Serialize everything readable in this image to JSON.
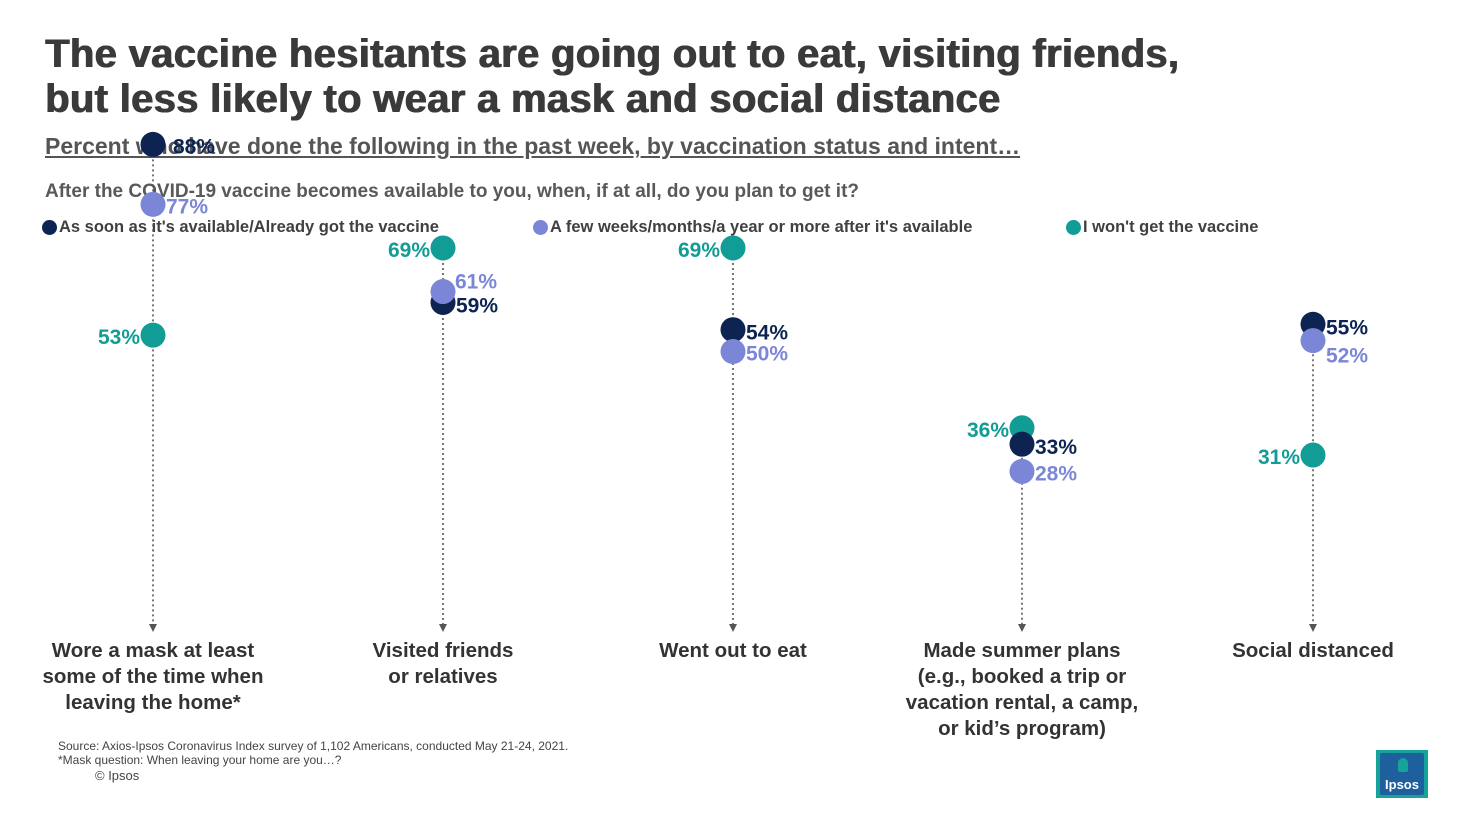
{
  "title_line1": "The vaccine hesitants are going out to eat, visiting friends,",
  "title_line2": "but less likely to wear a mask and social distance",
  "subtitle": "Percent who have done the following in the past week, by vaccination status and intent…",
  "question": "After the COVID-19 vaccine becomes available to you, when, if at all, do you plan to get it?",
  "footnote_source": "Source: Axios-Ipsos Coronavirus Index survey of 1,102 Americans, conducted May 21-24, 2021.",
  "footnote_mask": "*Mask question: When leaving your home are you…?",
  "copyright": "© Ipsos",
  "logo_text": "Ipsos",
  "colors": {
    "soon": "#0d2453",
    "later": "#7b86d6",
    "wont": "#119c95"
  },
  "chart_data": {
    "type": "dot",
    "series": [
      {
        "name": "As soon as it's available/Already got the vaccine",
        "key": "soon",
        "values": [
          88,
          59,
          54,
          33,
          55
        ]
      },
      {
        "name": "A few weeks/months/a year or more after it's available",
        "key": "later",
        "values": [
          77,
          61,
          50,
          28,
          52
        ]
      },
      {
        "name": "I won't get the vaccine",
        "key": "wont",
        "values": [
          53,
          69,
          69,
          36,
          31
        ]
      }
    ],
    "categories": [
      [
        "Wore a mask at least",
        "some of the time when",
        "leaving the home*"
      ],
      [
        "Visited friends",
        "or relatives"
      ],
      [
        "Went out to eat"
      ],
      [
        "Made summer plans",
        "(e.g., booked a trip or",
        "vacation rental, a camp,",
        "or kid’s program)"
      ],
      [
        "Social distanced"
      ]
    ],
    "value_suffix": "%"
  }
}
